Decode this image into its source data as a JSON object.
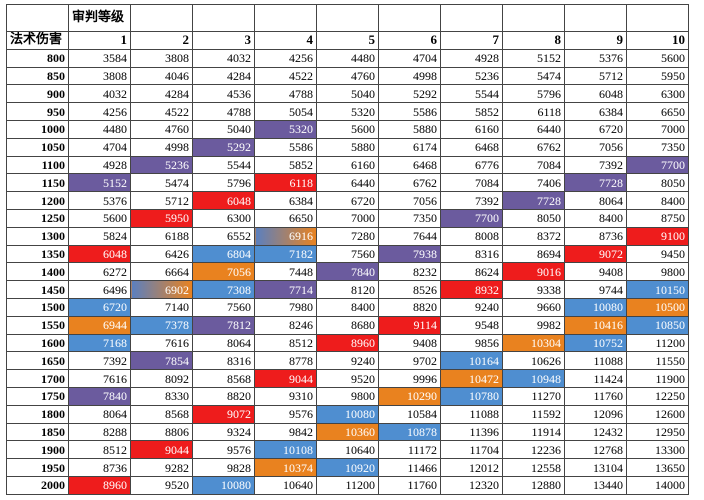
{
  "table": {
    "level_label": "审判等级",
    "damage_label": "法术伤害",
    "levels": [
      1,
      2,
      3,
      4,
      5,
      6,
      7,
      8,
      9,
      10
    ],
    "rows": [
      {
        "damage": 800,
        "values": [
          3584,
          3808,
          4032,
          4256,
          4480,
          4704,
          4928,
          5152,
          5376,
          5600
        ]
      },
      {
        "damage": 850,
        "values": [
          3808,
          4046,
          4284,
          4522,
          4760,
          4998,
          5236,
          5474,
          5712,
          5950
        ]
      },
      {
        "damage": 900,
        "values": [
          4032,
          4284,
          4536,
          4788,
          5040,
          5292,
          5544,
          5796,
          6048,
          6300
        ]
      },
      {
        "damage": 950,
        "values": [
          4256,
          4522,
          4788,
          5054,
          5320,
          5586,
          5852,
          6118,
          6384,
          6650
        ]
      },
      {
        "damage": 1000,
        "values": [
          4480,
          4760,
          5040,
          5320,
          5600,
          5880,
          6160,
          6440,
          6720,
          7000
        ]
      },
      {
        "damage": 1050,
        "values": [
          4704,
          4998,
          5292,
          5586,
          5880,
          6174,
          6468,
          6762,
          7056,
          7350
        ]
      },
      {
        "damage": 1100,
        "values": [
          4928,
          5236,
          5544,
          5852,
          6160,
          6468,
          6776,
          7084,
          7392,
          7700
        ]
      },
      {
        "damage": 1150,
        "values": [
          5152,
          5474,
          5796,
          6118,
          6440,
          6762,
          7084,
          7406,
          7728,
          8050
        ]
      },
      {
        "damage": 1200,
        "values": [
          5376,
          5712,
          6048,
          6384,
          6720,
          7056,
          7392,
          7728,
          8064,
          8400
        ]
      },
      {
        "damage": 1250,
        "values": [
          5600,
          5950,
          6300,
          6650,
          7000,
          7350,
          7700,
          8050,
          8400,
          8750
        ]
      },
      {
        "damage": 1300,
        "values": [
          5824,
          6188,
          6552,
          6916,
          7280,
          7644,
          8008,
          8372,
          8736,
          9100
        ]
      },
      {
        "damage": 1350,
        "values": [
          6048,
          6426,
          6804,
          7182,
          7560,
          7938,
          8316,
          8694,
          9072,
          9450
        ]
      },
      {
        "damage": 1400,
        "values": [
          6272,
          6664,
          7056,
          7448,
          7840,
          8232,
          8624,
          9016,
          9408,
          9800
        ]
      },
      {
        "damage": 1450,
        "values": [
          6496,
          6902,
          7308,
          7714,
          8120,
          8526,
          8932,
          9338,
          9744,
          10150
        ]
      },
      {
        "damage": 1500,
        "values": [
          6720,
          7140,
          7560,
          7980,
          8400,
          8820,
          9240,
          9660,
          10080,
          10500
        ]
      },
      {
        "damage": 1550,
        "values": [
          6944,
          7378,
          7812,
          8246,
          8680,
          9114,
          9548,
          9982,
          10416,
          10850
        ]
      },
      {
        "damage": 1600,
        "values": [
          7168,
          7616,
          8064,
          8512,
          8960,
          9408,
          9856,
          10304,
          10752,
          11200
        ]
      },
      {
        "damage": 1650,
        "values": [
          7392,
          7854,
          8316,
          8778,
          9240,
          9702,
          10164,
          10626,
          11088,
          11550
        ]
      },
      {
        "damage": 1700,
        "values": [
          7616,
          8092,
          8568,
          9044,
          9520,
          9996,
          10472,
          10948,
          11424,
          11900
        ]
      },
      {
        "damage": 1750,
        "values": [
          7840,
          8330,
          8820,
          9310,
          9800,
          10290,
          10780,
          11270,
          11760,
          12250
        ]
      },
      {
        "damage": 1800,
        "values": [
          8064,
          8568,
          9072,
          9576,
          10080,
          10584,
          11088,
          11592,
          12096,
          12600
        ]
      },
      {
        "damage": 1850,
        "values": [
          8288,
          8806,
          9324,
          9842,
          10360,
          10878,
          11396,
          11914,
          12432,
          12950
        ]
      },
      {
        "damage": 1900,
        "values": [
          8512,
          9044,
          9576,
          10108,
          10640,
          11172,
          11704,
          12236,
          12768,
          13300
        ]
      },
      {
        "damage": 1950,
        "values": [
          8736,
          9282,
          9828,
          10374,
          10920,
          11466,
          12012,
          12558,
          13104,
          13650
        ]
      },
      {
        "damage": 2000,
        "values": [
          8960,
          9520,
          10080,
          10640,
          11200,
          11760,
          12320,
          12880,
          13440,
          14000
        ]
      }
    ]
  }
}
